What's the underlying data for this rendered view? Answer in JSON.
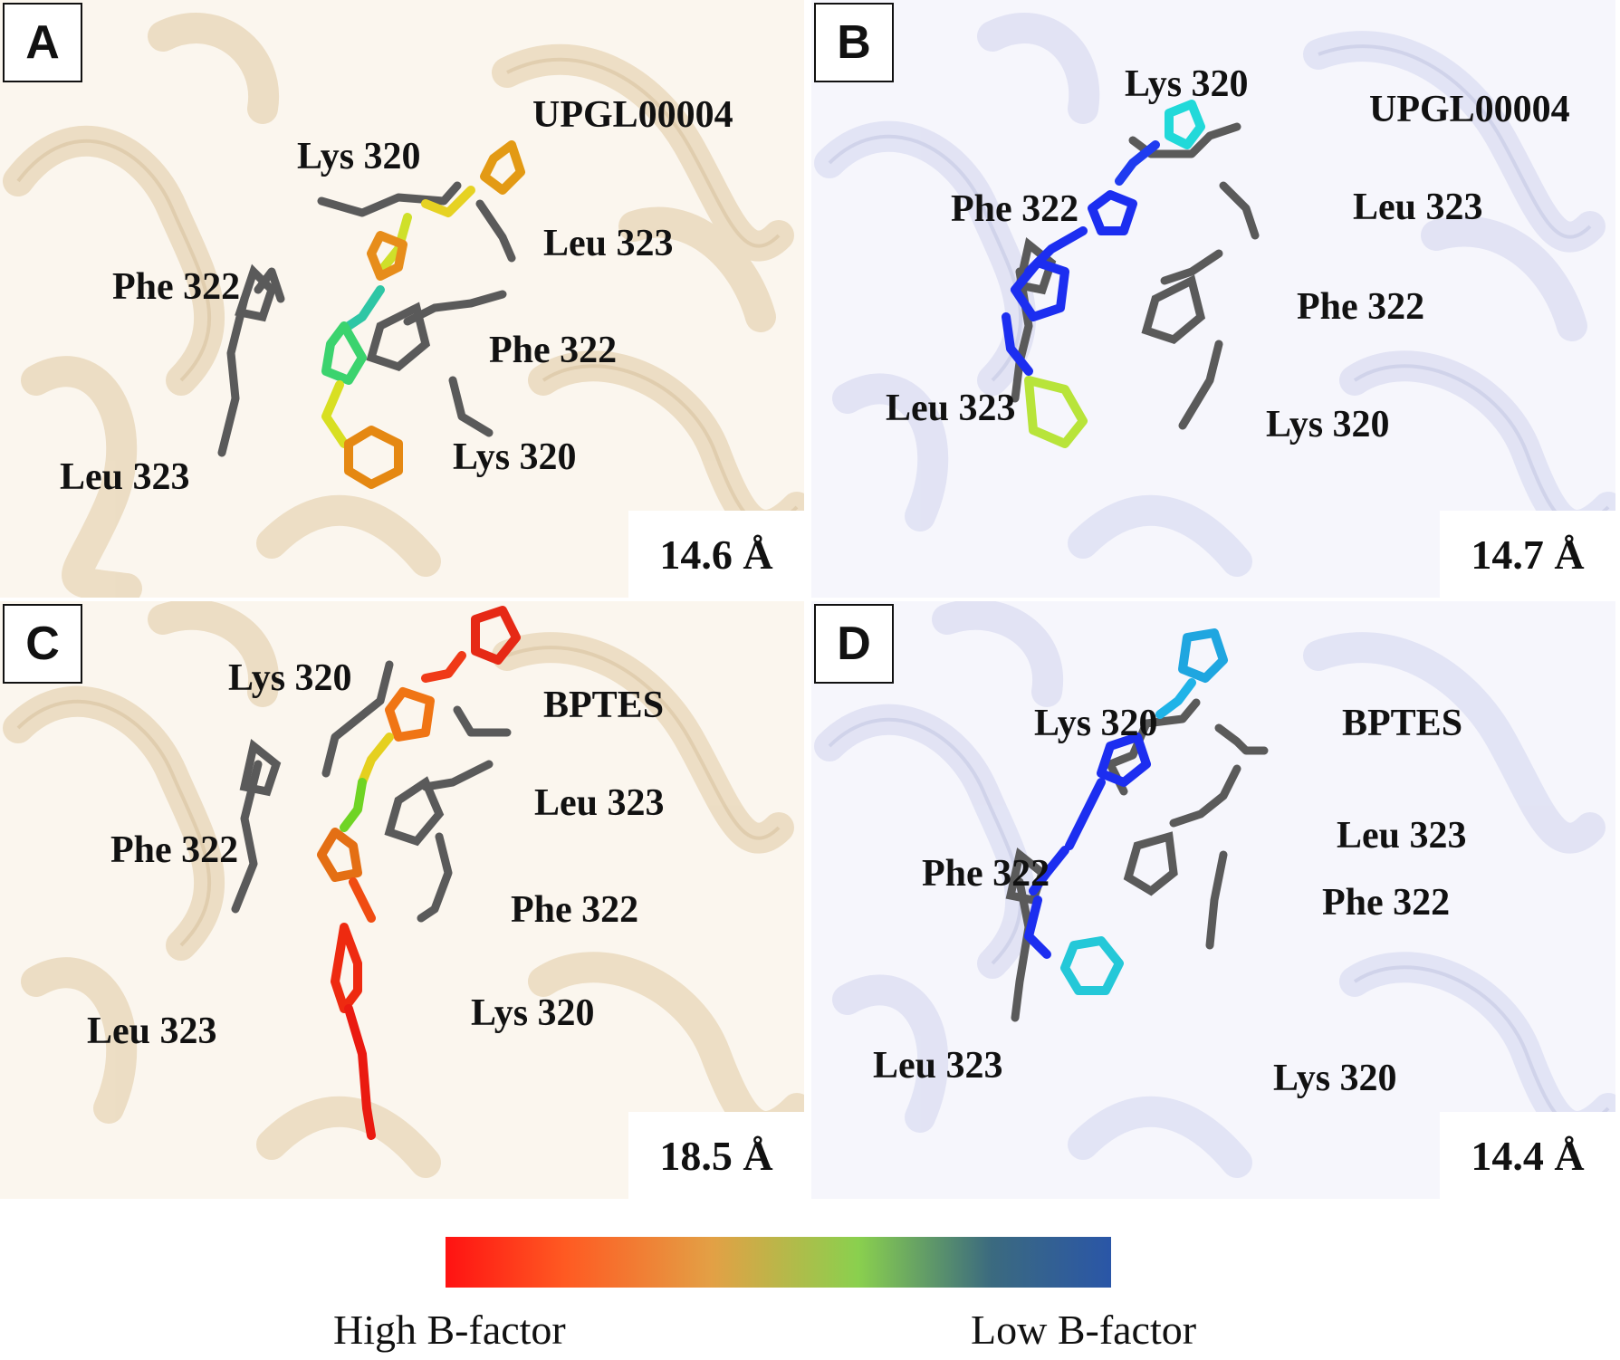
{
  "panels": {
    "A": {
      "letter": "A",
      "distance": "14.6 Å",
      "ligand": "UPGL00004",
      "lys_top": "Lys 320",
      "leu_right": "Leu 323",
      "phe_left": "Phe 322",
      "phe_right": "Phe 322",
      "leu_left": "Leu 323",
      "lys_bottom": "Lys 320"
    },
    "B": {
      "letter": "B",
      "distance": "14.7 Å",
      "ligand": "UPGL00004",
      "lys_top": "Lys 320",
      "leu_right": "Leu 323",
      "phe_left": "Phe 322",
      "phe_right": "Phe 322",
      "leu_left": "Leu 323",
      "lys_bottom": "Lys 320"
    },
    "C": {
      "letter": "C",
      "distance": "18.5 Å",
      "ligand": "BPTES",
      "lys_top": "Lys 320",
      "leu_right": "Leu 323",
      "phe_left": "Phe 322",
      "phe_right": "Phe 322",
      "leu_left": "Leu 323",
      "lys_bottom": "Lys 320"
    },
    "D": {
      "letter": "D",
      "distance": "14.4 Å",
      "ligand": "BPTES",
      "lys_top": "Lys 320",
      "leu_right": "Leu 323",
      "phe_left": "Phe 322",
      "phe_right": "Phe 322",
      "leu_left": "Leu 323",
      "lys_bottom": "Lys 320"
    }
  },
  "legend": {
    "high_label": "High B-factor",
    "low_label": "Low B-factor",
    "colors": [
      "#ff1212",
      "#ff5a22",
      "#e3a045",
      "#8ad04e",
      "#3b6a7f",
      "#2a56a7"
    ]
  },
  "colors": {
    "tan_ribbon": "#e9dcc4",
    "lavender_ribbon": "#dfe1f4",
    "residue_grey": "#5a5a5a"
  }
}
